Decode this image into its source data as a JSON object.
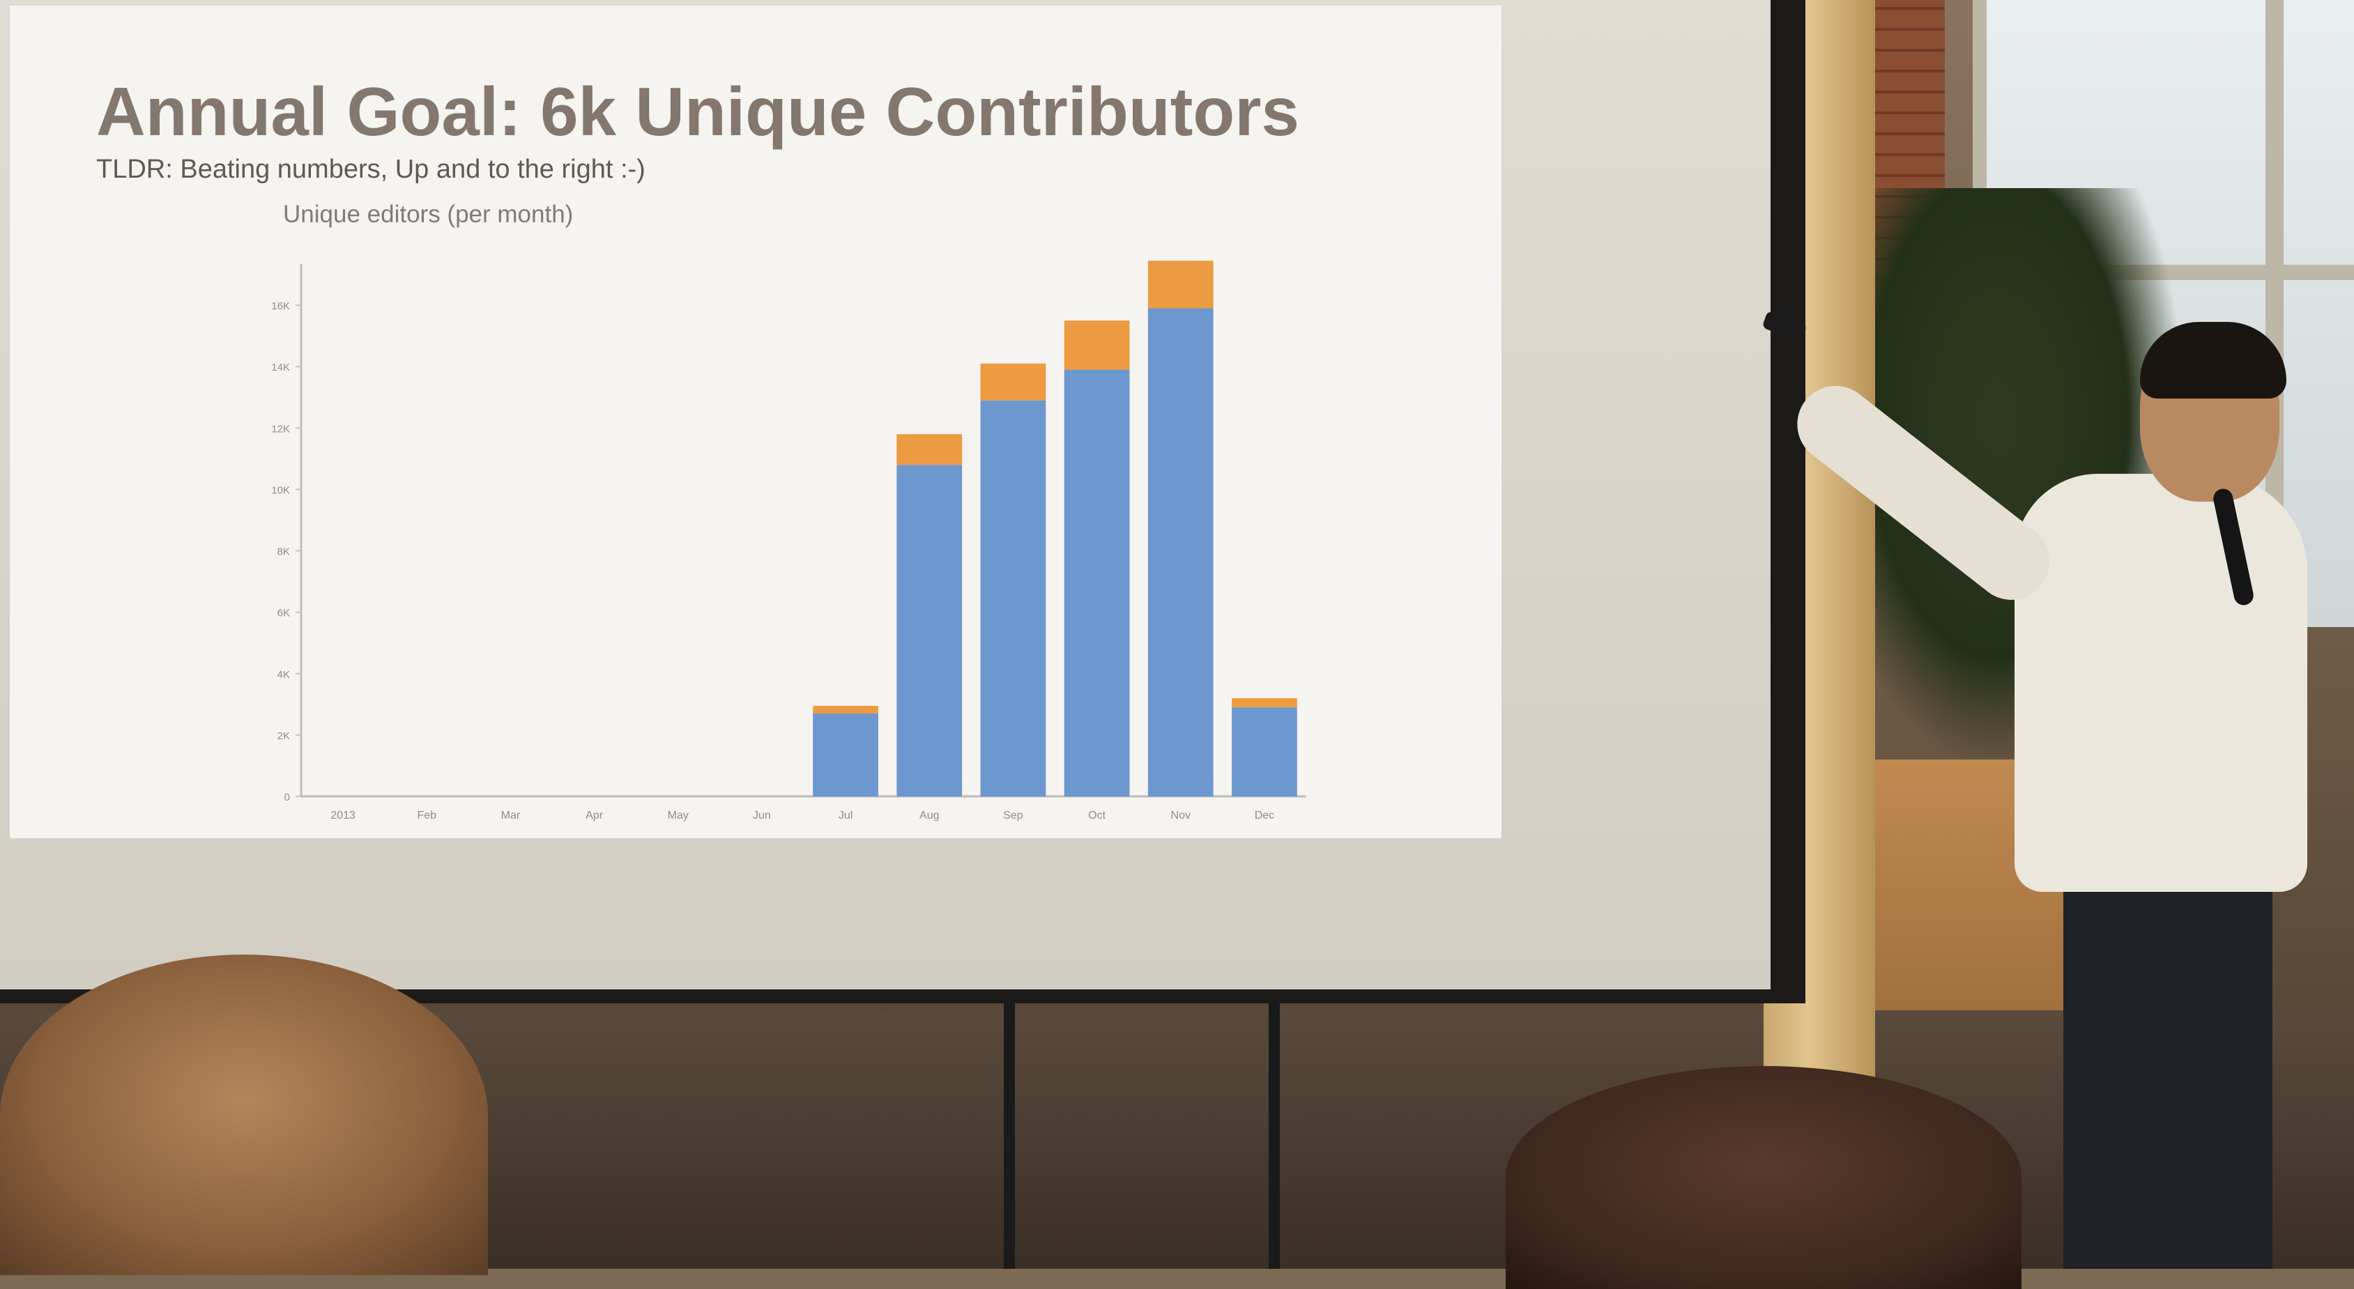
{
  "slide": {
    "title": "Annual Goal: 6k Unique Contributors",
    "subtitle": "TLDR: Beating numbers, Up and to the right :-)"
  },
  "chart_data": {
    "type": "bar",
    "title": "Unique editors (per month)",
    "xlabel": "",
    "ylabel": "",
    "categories": [
      "2013",
      "Feb",
      "Mar",
      "Apr",
      "May",
      "Jun",
      "Jul",
      "Aug",
      "Sep",
      "Oct",
      "Nov",
      "Dec"
    ],
    "series": [
      {
        "values": [
          0,
          0,
          0,
          0,
          0,
          0,
          2700,
          10800,
          12900,
          13900,
          15900,
          2900
        ],
        "color": "#6c97cf"
      },
      {
        "values": [
          0,
          0,
          0,
          0,
          0,
          0,
          250,
          1000,
          1200,
          1600,
          1550,
          300
        ],
        "color": "#ec9b42"
      }
    ],
    "stacked": true,
    "yticks": [
      "0",
      "2K",
      "4K",
      "6K",
      "8K",
      "10K",
      "12K",
      "14K",
      "16K"
    ],
    "ylim": [
      0,
      17000
    ],
    "grid": false,
    "legend": "none"
  }
}
